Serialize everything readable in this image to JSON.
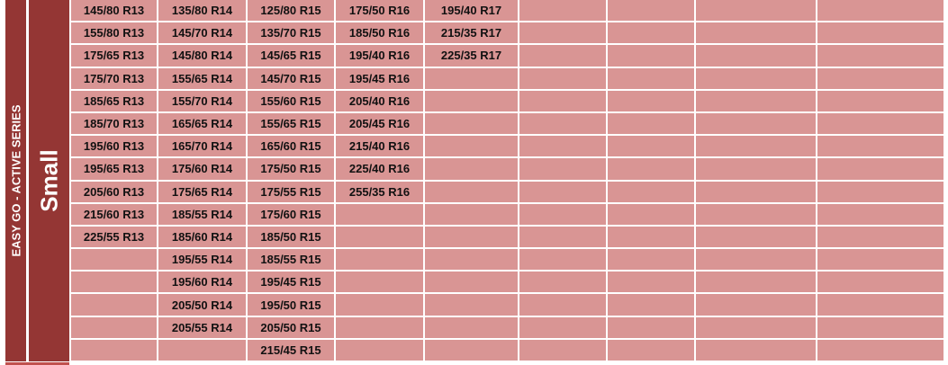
{
  "series_label": "EASY GO - ACTIVE SERIES",
  "category_label": "Small",
  "colors": {
    "header_bg": "#943634",
    "cell_bg": "#d99594"
  },
  "columns": [
    [
      "145/80 R13",
      "155/80 R13",
      "175/65 R13",
      "175/70 R13",
      "185/65 R13",
      "185/70 R13",
      "195/60 R13",
      "195/65 R13",
      "205/60 R13",
      "215/60 R13",
      "225/55 R13"
    ],
    [
      "135/80 R14",
      "145/70 R14",
      "145/80 R14",
      "155/65 R14",
      "155/70 R14",
      "165/65 R14",
      "165/70 R14",
      "175/60 R14",
      "175/65 R14",
      "185/55 R14",
      "185/60 R14",
      "195/55 R14",
      "195/60 R14",
      "205/50 R14",
      "205/55 R14"
    ],
    [
      "125/80 R15",
      "135/70 R15",
      "145/65 R15",
      "145/70 R15",
      "155/60 R15",
      "155/65 R15",
      "165/60 R15",
      "175/50 R15",
      "175/55 R15",
      "175/60 R15",
      "185/50 R15",
      "185/55 R15",
      "195/45 R15",
      "195/50 R15",
      "205/50 R15",
      "215/45 R15"
    ],
    [
      "175/50 R16",
      "185/50 R16",
      "195/40 R16",
      "195/45 R16",
      "205/40 R16",
      "205/45 R16",
      "215/40 R16",
      "225/40 R16",
      "255/35 R16"
    ],
    [
      "195/40 R17",
      "215/35 R17",
      "225/35 R17"
    ],
    [],
    [],
    [],
    []
  ]
}
